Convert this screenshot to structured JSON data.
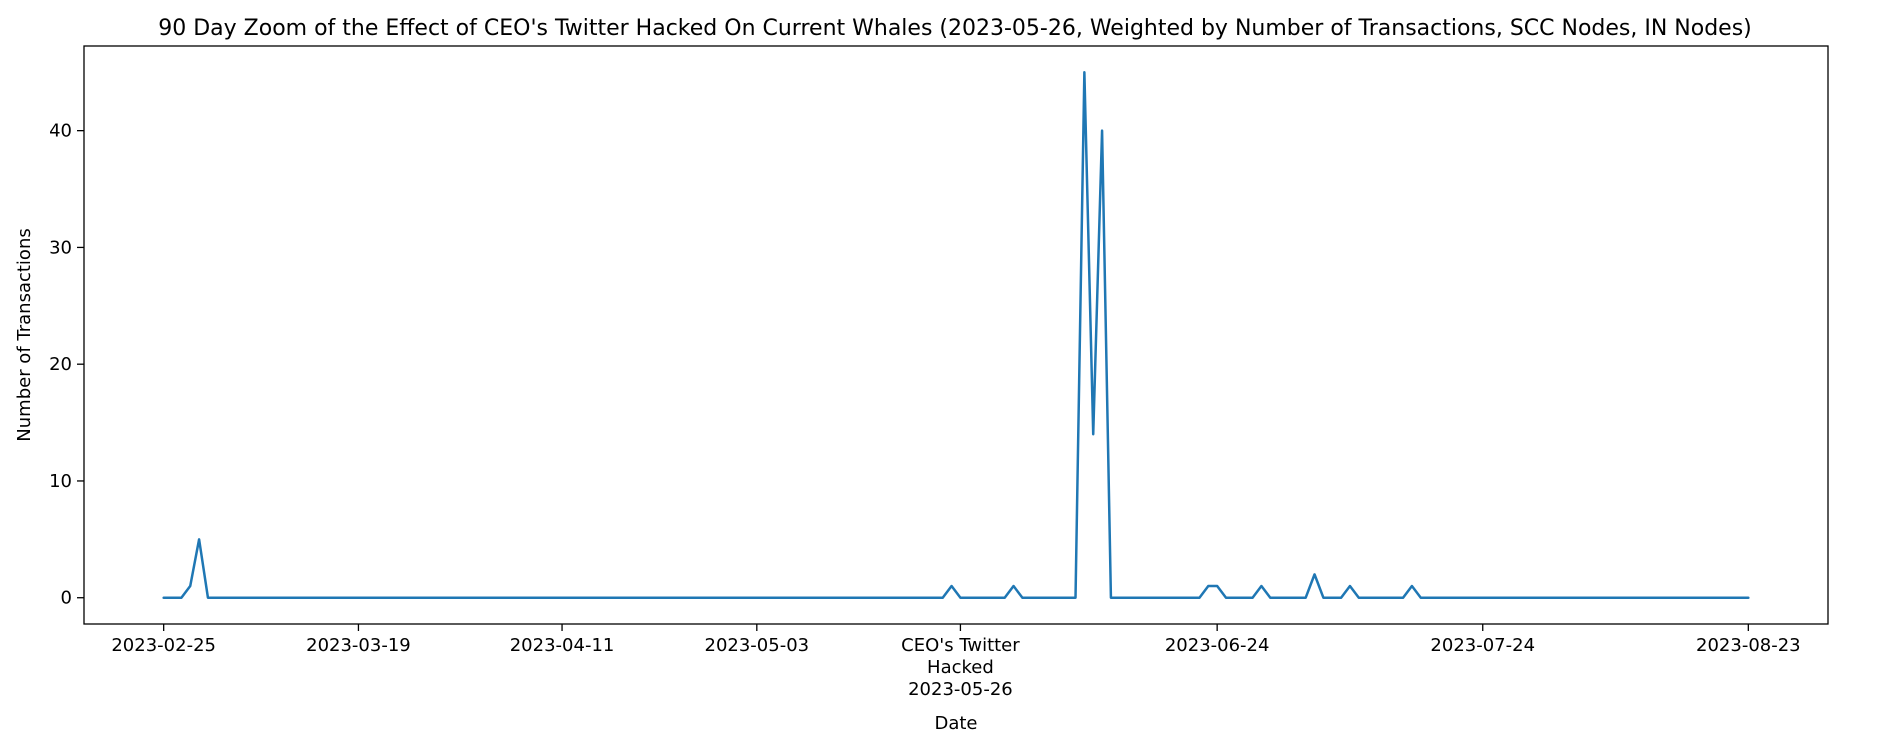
{
  "chart_data": {
    "type": "line",
    "title": "90 Day Zoom of the Effect of CEO's Twitter Hacked On Current Whales (2023-05-26, Weighted by Number of Transactions, SCC Nodes, IN Nodes)",
    "xlabel": "Date",
    "ylabel": "Number of Transactions",
    "xlim": [
      "2023-02-16",
      "2023-08-32"
    ],
    "ylim": [
      -2.25,
      47.25
    ],
    "grid": false,
    "line_color": "#1f77b4",
    "x_ticks": [
      {
        "date": "2023-02-25",
        "label": "2023-02-25"
      },
      {
        "date": "2023-03-19",
        "label": "2023-03-19"
      },
      {
        "date": "2023-04-11",
        "label": "2023-04-11"
      },
      {
        "date": "2023-05-03",
        "label": "2023-05-03"
      },
      {
        "date": "2023-05-26",
        "label": "CEO's Twitter\nHacked\n2023-05-26"
      },
      {
        "date": "2023-06-24",
        "label": "2023-06-24"
      },
      {
        "date": "2023-07-24",
        "label": "2023-07-24"
      },
      {
        "date": "2023-08-23",
        "label": "2023-08-23"
      }
    ],
    "y_ticks": [
      0,
      10,
      20,
      30,
      40
    ],
    "series": [
      {
        "points": [
          [
            "2023-02-25",
            0
          ],
          [
            "2023-02-27",
            0
          ],
          [
            "2023-02-28",
            1
          ],
          [
            "2023-03-01",
            5
          ],
          [
            "2023-03-02",
            0
          ],
          [
            "2023-05-24",
            0
          ],
          [
            "2023-05-25",
            1
          ],
          [
            "2023-05-26",
            0
          ],
          [
            "2023-05-31",
            0
          ],
          [
            "2023-06-01",
            1
          ],
          [
            "2023-06-02",
            0
          ],
          [
            "2023-06-08",
            0
          ],
          [
            "2023-06-09",
            45
          ],
          [
            "2023-06-10",
            14
          ],
          [
            "2023-06-11",
            40
          ],
          [
            "2023-06-12",
            0
          ],
          [
            "2023-06-22",
            0
          ],
          [
            "2023-06-23",
            1
          ],
          [
            "2023-06-24",
            1
          ],
          [
            "2023-06-25",
            0
          ],
          [
            "2023-06-28",
            0
          ],
          [
            "2023-06-29",
            1
          ],
          [
            "2023-06-30",
            0
          ],
          [
            "2023-07-04",
            0
          ],
          [
            "2023-07-05",
            2
          ],
          [
            "2023-07-06",
            0
          ],
          [
            "2023-07-08",
            0
          ],
          [
            "2023-07-09",
            1
          ],
          [
            "2023-07-10",
            0
          ],
          [
            "2023-07-15",
            0
          ],
          [
            "2023-07-16",
            1
          ],
          [
            "2023-07-17",
            0
          ],
          [
            "2023-08-23",
            0
          ]
        ]
      }
    ]
  }
}
